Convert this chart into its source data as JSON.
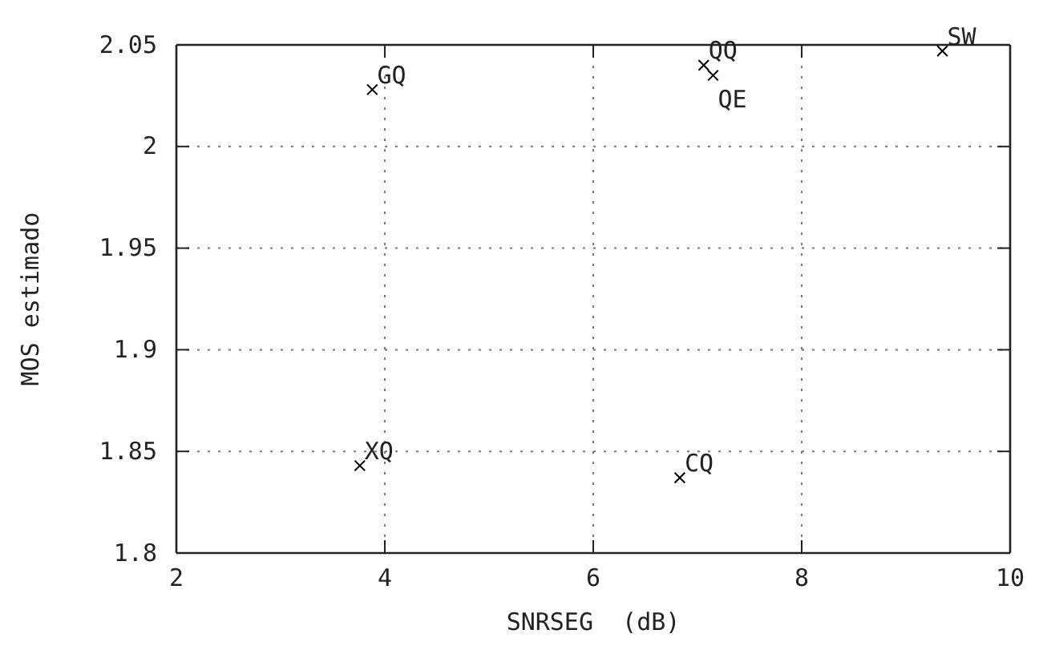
{
  "chart_data": {
    "type": "scatter",
    "xlabel": "SNRSEG  (dB)",
    "ylabel": "MOS estimado",
    "xlim": [
      2,
      10
    ],
    "ylim": [
      1.8,
      2.05
    ],
    "xticks": [
      2,
      4,
      6,
      8,
      10
    ],
    "yticks": [
      1.8,
      1.85,
      1.9,
      1.95,
      2,
      2.05
    ],
    "grid": true,
    "marker": "cross",
    "legend": false,
    "series": [
      {
        "name": "GQ",
        "color": "#000000",
        "x": [
          3.88
        ],
        "values": [
          2.028
        ]
      },
      {
        "name": "QQ",
        "color": "#000000",
        "x": [
          7.06
        ],
        "values": [
          2.04
        ]
      },
      {
        "name": "QE",
        "color": "#000000",
        "x": [
          7.15
        ],
        "values": [
          2.035
        ]
      },
      {
        "name": "SW",
        "color": "#000000",
        "x": [
          9.35
        ],
        "values": [
          2.047
        ]
      },
      {
        "name": "XQ",
        "color": "#000000",
        "x": [
          3.76
        ],
        "values": [
          1.843
        ]
      },
      {
        "name": "CQ",
        "color": "#000000",
        "x": [
          6.83
        ],
        "values": [
          1.837
        ]
      }
    ]
  }
}
